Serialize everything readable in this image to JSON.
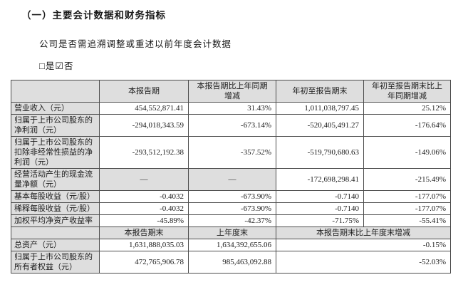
{
  "doc": {
    "title": "（一）主要会计数据和财务指标",
    "question": "公司是否需追溯调整或重述以前年度会计数据",
    "yes_box": "□",
    "yes_label": "是",
    "no_box": "☑",
    "no_label": "否"
  },
  "table": {
    "h1": {
      "c1": "",
      "c2": "本报告期",
      "c3": "本报告期比上年同期增减",
      "c4": "年初至报告期末",
      "c5": "年初至报告期末比上年同期增减"
    },
    "rows1": [
      {
        "label": "营业收入（元）",
        "v1": "454,552,871.41",
        "v2": "31.43%",
        "v3": "1,011,038,797.45",
        "v4": "25.12%"
      },
      {
        "label": "归属于上市公司股东的净利润（元）",
        "v1": "-294,018,343.59",
        "v2": "-673.14%",
        "v3": "-520,405,491.27",
        "v4": "-176.64%"
      },
      {
        "label": "归属于上市公司股东的扣除非经常性损益的净利润（元）",
        "v1": "-293,512,192.38",
        "v2": "-357.52%",
        "v3": "-519,790,680.63",
        "v4": "-149.06%"
      },
      {
        "label": "经营活动产生的现金流量净额（元）",
        "v1": "—",
        "v2": "—",
        "v3": "-172,698,298.41",
        "v4": "-215.49%"
      },
      {
        "label": "基本每股收益（元/股）",
        "v1": "-0.4032",
        "v2": "-673.90%",
        "v3": "-0.7140",
        "v4": "-177.07%"
      },
      {
        "label": "稀释每股收益（元/股）",
        "v1": "-0.4032",
        "v2": "-673.90%",
        "v3": "-0.7140",
        "v4": "-177.07%"
      },
      {
        "label": "加权平均净资产收益率",
        "v1": "-45.89%",
        "v2": "-42.37%",
        "v3": "-71.75%",
        "v4": "-55.41%"
      }
    ],
    "h2": {
      "c1": "",
      "c2": "本报告期末",
      "c3": "上年度末",
      "c4": "本报告期末比上年度末增减"
    },
    "rows2": [
      {
        "label": "总资产（元）",
        "v1": "1,631,888,035.03",
        "v2": "1,634,392,655.06",
        "v3": "-0.15%"
      },
      {
        "label": "归属于上市公司股东的所有者权益（元）",
        "v1": "472,765,906.78",
        "v2": "985,463,092.88",
        "v3": "-52.03%"
      }
    ]
  },
  "colors": {
    "header_bg": "#dedede",
    "border": "#4d4d4d",
    "text": "#1a1a1a",
    "page_bg": "#ffffff"
  }
}
